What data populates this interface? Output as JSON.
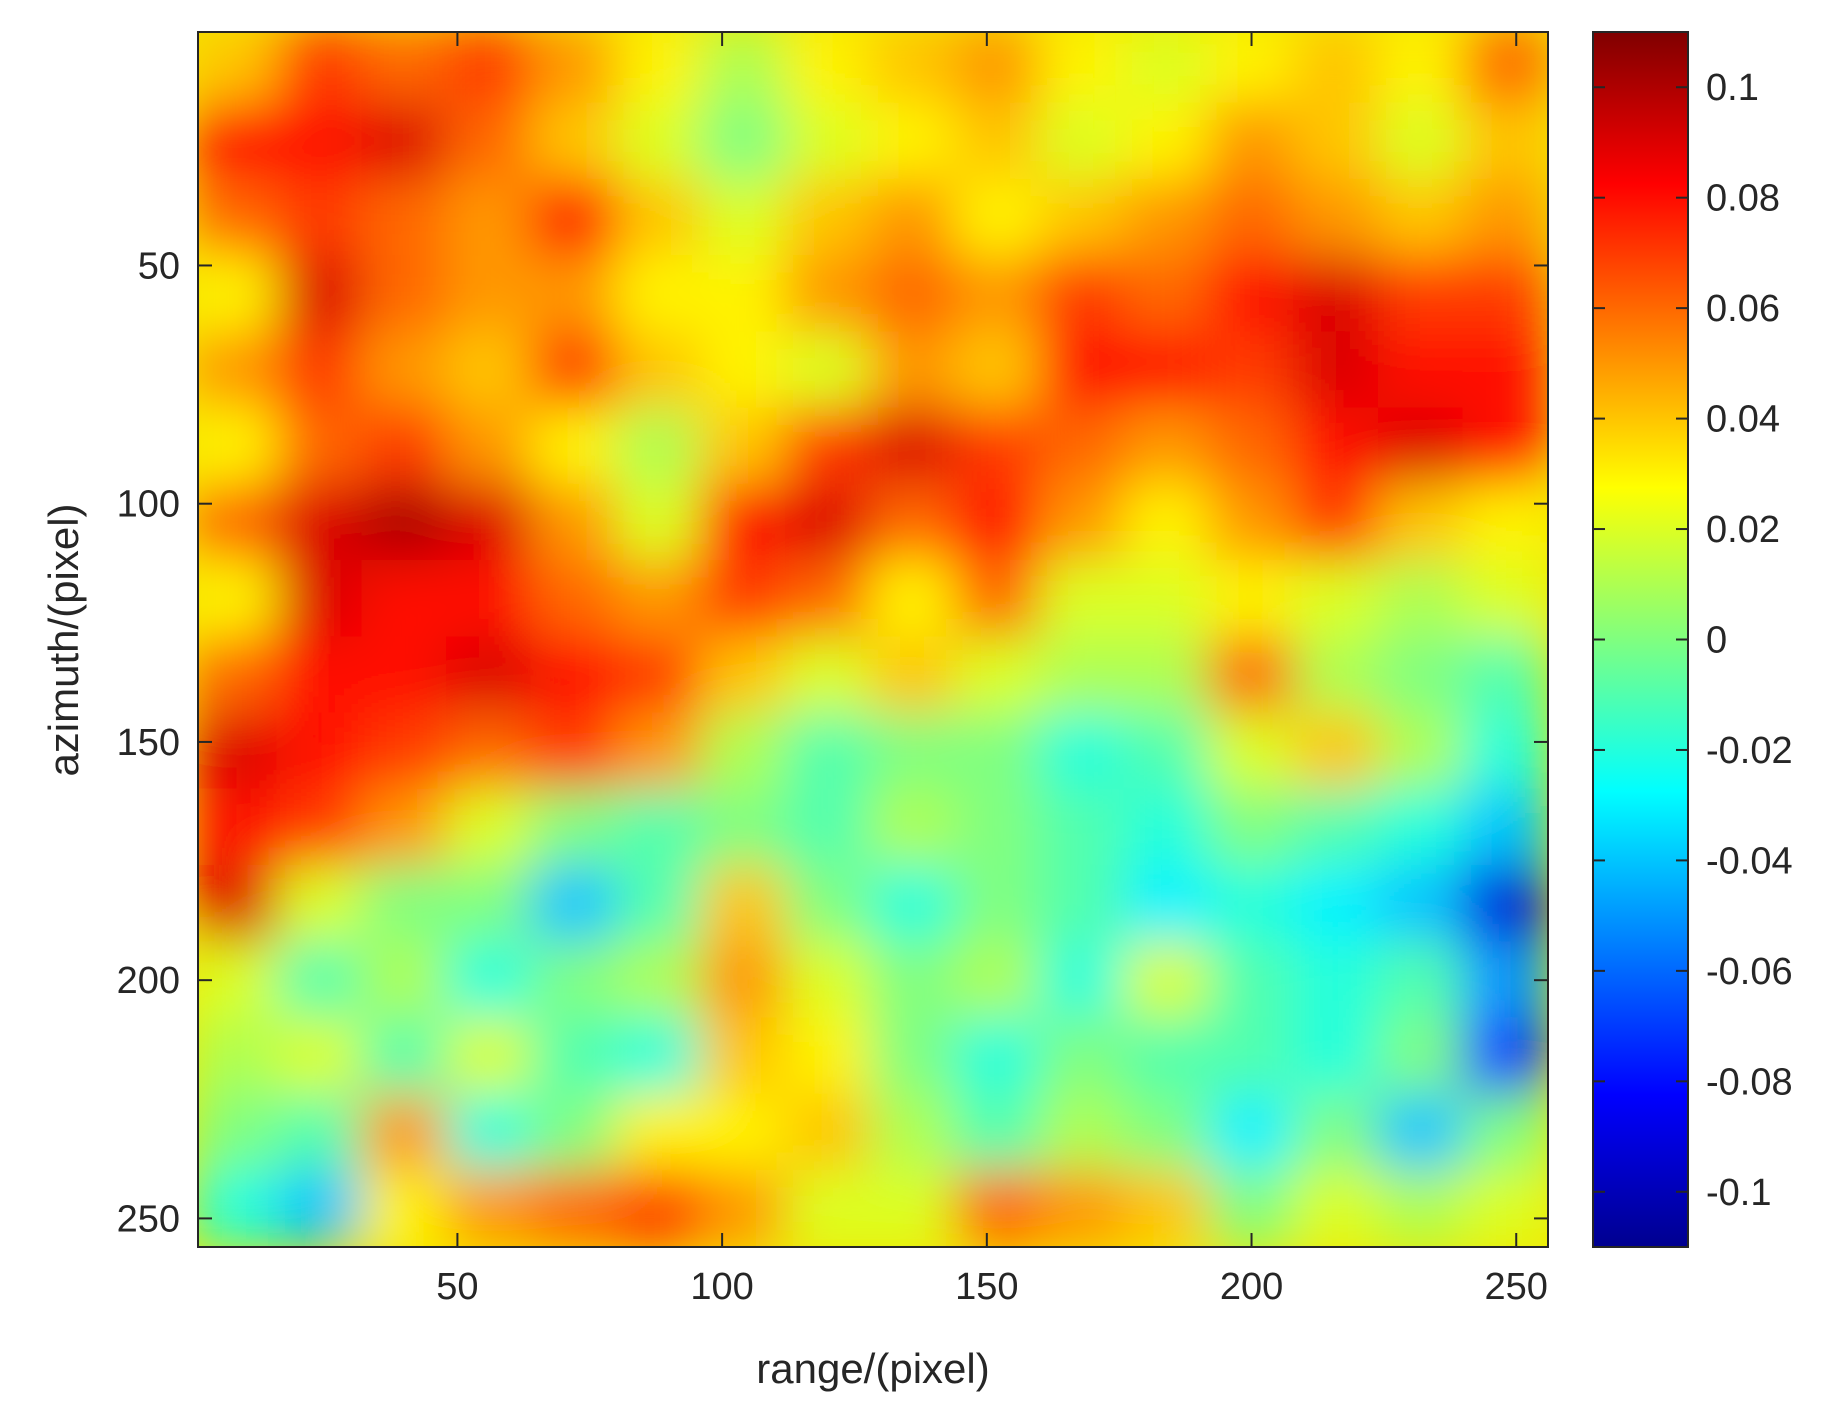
{
  "chart_data": {
    "type": "heatmap",
    "title": "",
    "xlabel": "range/(pixel)",
    "ylabel": "azimuth/(pixel)",
    "xlim": [
      1,
      256
    ],
    "ylim": [
      1,
      256
    ],
    "y_direction": "reversed",
    "x_ticks": [
      50,
      100,
      150,
      200,
      250
    ],
    "y_ticks": [
      50,
      100,
      150,
      200,
      250
    ],
    "colormap": "jet",
    "colorbar": {
      "location": "right",
      "range": [
        -0.11,
        0.11
      ],
      "ticks": [
        0.1,
        0.08,
        0.06,
        0.04,
        0.02,
        0,
        -0.02,
        -0.04,
        -0.06,
        -0.08,
        -0.1
      ],
      "tick_labels": [
        "0.1",
        "0.08",
        "0.06",
        "0.04",
        "0.02",
        "0",
        "-0.02",
        "-0.04",
        "-0.06",
        "-0.08",
        "-0.1"
      ]
    },
    "grid": false,
    "value_grid": {
      "x_centers": [
        8,
        24,
        40,
        56,
        72,
        88,
        104,
        120,
        136,
        152,
        168,
        184,
        200,
        216,
        232,
        248
      ],
      "y_centers": [
        8,
        24,
        40,
        56,
        72,
        88,
        104,
        120,
        136,
        152,
        168,
        184,
        200,
        216,
        232,
        248
      ],
      "values": [
        [
          0.04,
          0.07,
          0.06,
          0.07,
          0.05,
          0.03,
          0.01,
          0.03,
          0.04,
          0.05,
          0.03,
          0.02,
          0.03,
          0.04,
          0.03,
          0.06
        ],
        [
          0.08,
          0.08,
          0.09,
          0.06,
          0.04,
          0.02,
          0.0,
          0.02,
          0.03,
          0.04,
          0.02,
          0.03,
          0.05,
          0.04,
          0.02,
          0.04
        ],
        [
          0.06,
          0.07,
          0.06,
          0.05,
          0.08,
          0.04,
          0.02,
          0.04,
          0.05,
          0.03,
          0.04,
          0.05,
          0.06,
          0.05,
          0.04,
          0.05
        ],
        [
          0.03,
          0.09,
          0.06,
          0.05,
          0.05,
          0.03,
          0.03,
          0.05,
          0.06,
          0.05,
          0.07,
          0.06,
          0.08,
          0.09,
          0.07,
          0.07
        ],
        [
          0.05,
          0.07,
          0.05,
          0.04,
          0.07,
          0.04,
          0.03,
          0.02,
          0.05,
          0.04,
          0.08,
          0.08,
          0.07,
          0.09,
          0.08,
          0.08
        ],
        [
          0.03,
          0.06,
          0.07,
          0.05,
          0.03,
          0.01,
          0.04,
          0.07,
          0.09,
          0.07,
          0.06,
          0.05,
          0.06,
          0.08,
          0.09,
          0.08
        ],
        [
          0.06,
          0.09,
          0.1,
          0.09,
          0.05,
          0.02,
          0.08,
          0.09,
          0.06,
          0.08,
          0.05,
          0.03,
          0.05,
          0.07,
          0.04,
          0.03
        ],
        [
          0.03,
          0.09,
          0.08,
          0.08,
          0.06,
          0.05,
          0.07,
          0.06,
          0.03,
          0.06,
          0.02,
          0.02,
          0.03,
          0.02,
          0.01,
          0.02
        ],
        [
          0.06,
          0.08,
          0.08,
          0.09,
          0.08,
          0.07,
          0.04,
          0.02,
          0.04,
          0.02,
          0.01,
          0.01,
          0.06,
          0.01,
          0.0,
          -0.01
        ],
        [
          0.09,
          0.08,
          0.07,
          0.06,
          0.07,
          0.05,
          0.01,
          -0.01,
          0.0,
          0.0,
          -0.02,
          -0.01,
          0.02,
          0.04,
          0.01,
          -0.02
        ],
        [
          0.08,
          0.07,
          0.05,
          0.02,
          0.0,
          -0.01,
          0.0,
          -0.01,
          0.01,
          0.0,
          -0.01,
          -0.02,
          0.0,
          -0.01,
          -0.02,
          -0.04
        ],
        [
          0.09,
          0.02,
          0.0,
          0.0,
          -0.04,
          -0.01,
          0.04,
          0.0,
          -0.02,
          0.0,
          -0.01,
          -0.03,
          -0.02,
          -0.03,
          -0.04,
          -0.09
        ],
        [
          0.02,
          -0.01,
          0.01,
          -0.02,
          0.0,
          0.01,
          0.05,
          0.02,
          0.0,
          0.01,
          -0.02,
          0.02,
          -0.01,
          -0.02,
          -0.01,
          -0.05
        ],
        [
          0.01,
          0.02,
          -0.01,
          0.02,
          -0.01,
          -0.02,
          0.04,
          0.03,
          0.0,
          -0.02,
          0.0,
          -0.01,
          -0.01,
          -0.02,
          0.0,
          -0.07
        ],
        [
          0.0,
          -0.01,
          0.05,
          -0.02,
          0.0,
          0.03,
          0.03,
          0.04,
          0.01,
          -0.01,
          0.01,
          0.0,
          -0.03,
          0.0,
          -0.04,
          0.0
        ],
        [
          -0.02,
          -0.04,
          0.03,
          0.05,
          0.06,
          0.07,
          0.05,
          0.02,
          0.02,
          0.06,
          0.05,
          0.04,
          0.0,
          0.02,
          0.01,
          0.02
        ]
      ]
    }
  }
}
